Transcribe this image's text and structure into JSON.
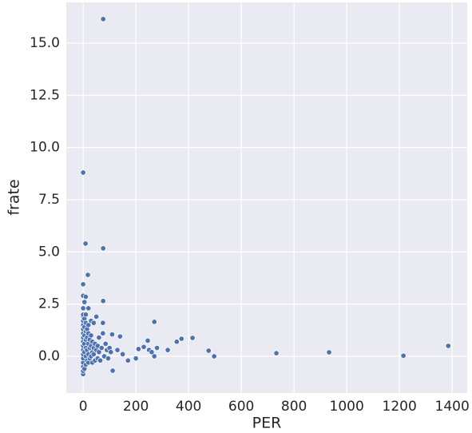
{
  "chart_data": {
    "type": "scatter",
    "x_label": "PER",
    "y_label": "frate",
    "color": "#4c72b0",
    "xlim": [
      -64,
      1457
    ],
    "ylim": [
      -1.76,
      16.95
    ],
    "xticks": [
      0,
      200,
      400,
      600,
      800,
      1000,
      1200,
      1400
    ],
    "yticks": [
      {
        "value": 0,
        "label": "0.0"
      },
      2.5,
      {
        "value": 5,
        "label": "5.0"
      },
      7.5,
      {
        "value": 10,
        "label": "10.0"
      },
      12.5,
      {
        "value": 15,
        "label": "15.0"
      }
    ],
    "grid": true,
    "x": [
      76,
      0,
      9,
      76,
      18,
      0,
      76,
      270,
      415,
      373,
      355,
      321,
      476,
      497,
      733,
      933,
      1215,
      1385,
      112,
      245,
      280,
      230,
      210,
      200,
      170,
      150,
      130,
      110,
      140,
      250,
      260,
      270,
      0,
      0,
      0,
      0,
      0,
      0,
      0,
      0,
      0,
      0,
      0,
      0,
      0,
      0,
      0,
      0,
      0,
      5,
      0,
      10,
      5,
      5,
      5,
      5,
      5,
      5,
      10,
      10,
      10,
      10,
      10,
      10,
      10,
      15,
      15,
      15,
      15,
      20,
      20,
      20,
      20,
      20,
      20,
      25,
      25,
      25,
      30,
      30,
      30,
      30,
      35,
      35,
      35,
      40,
      40,
      40,
      45,
      45,
      50,
      50,
      55,
      55,
      60,
      60,
      65,
      70,
      75,
      75,
      80,
      85,
      90,
      95,
      100,
      105
    ],
    "values": [
      16.15,
      8.8,
      5.4,
      5.17,
      3.9,
      3.45,
      2.65,
      1.65,
      0.88,
      0.84,
      0.7,
      0.3,
      0.27,
      0,
      0.15,
      0.19,
      0.03,
      0.5,
      -0.69,
      0.75,
      0.4,
      0.45,
      0.35,
      -0.1,
      -0.2,
      0.1,
      0.3,
      1.05,
      0.95,
      0.3,
      0.2,
      0,
      -0.85,
      -0.7,
      -0.5,
      -0.3,
      -0.1,
      0.1,
      0.3,
      0.5,
      0.7,
      0.9,
      1.1,
      1.3,
      1.5,
      1.7,
      1.9,
      2.0,
      2.3,
      2.6,
      2.9,
      2.85,
      -0.6,
      0.2,
      0.6,
      1.0,
      1.4,
      1.8,
      -0.4,
      0.0,
      0.4,
      0.8,
      1.2,
      1.6,
      2.0,
      -0.2,
      0.3,
      0.9,
      1.3,
      -0.3,
      0.1,
      0.6,
      1.1,
      1.5,
      2.3,
      -0.1,
      0.4,
      0.8,
      0.0,
      0.5,
      1.0,
      1.7,
      -0.3,
      0.2,
      0.7,
      0.1,
      0.4,
      1.6,
      -0.2,
      0.6,
      0.3,
      1.9,
      -0.1,
      0.5,
      0.2,
      0.9,
      -0.2,
      0.4,
      1.1,
      1.6,
      0.0,
      0.6,
      0.3,
      -0.1,
      0.4,
      0.2
    ]
  }
}
